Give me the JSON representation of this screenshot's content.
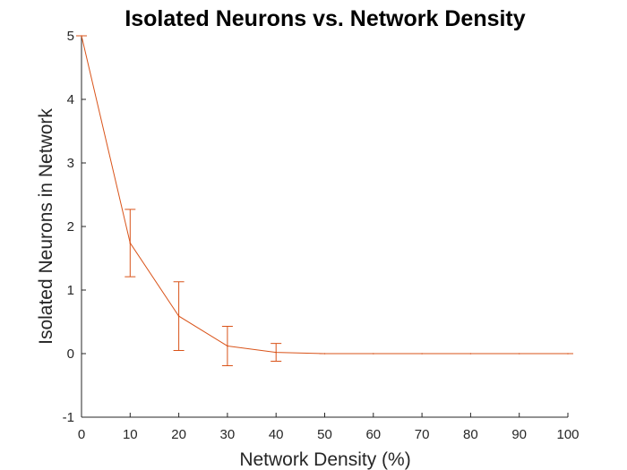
{
  "chart_data": {
    "type": "line",
    "title": "Isolated Neurons vs. Network Density",
    "xlabel": "Network Density (%)",
    "ylabel": "Isolated Neurons in Network",
    "xlim": [
      0,
      100
    ],
    "ylim": [
      -1,
      5
    ],
    "xticks": [
      0,
      10,
      20,
      30,
      40,
      50,
      60,
      70,
      80,
      90,
      100
    ],
    "yticks": [
      -1,
      0,
      1,
      2,
      3,
      4,
      5
    ],
    "grid": false,
    "legend": "none",
    "series": [
      {
        "color": "#D95319",
        "x": [
          0,
          10,
          20,
          30,
          40,
          50,
          60,
          70,
          80,
          90,
          100
        ],
        "y": [
          5,
          1.74,
          0.59,
          0.12,
          0.02,
          0,
          0,
          0,
          0,
          0,
          0
        ],
        "error": [
          0,
          0.53,
          0.54,
          0.31,
          0.14,
          0,
          0,
          0,
          0,
          0,
          0
        ]
      }
    ]
  }
}
